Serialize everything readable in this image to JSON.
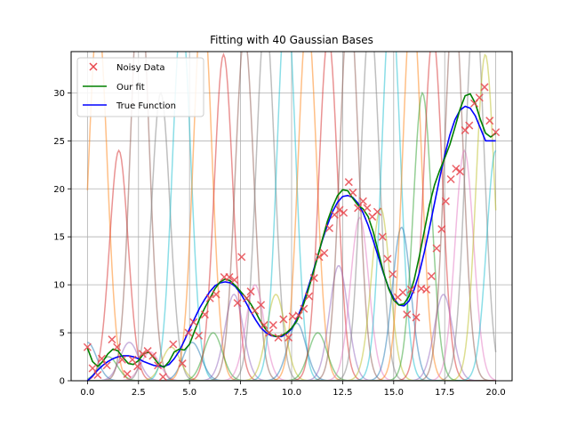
{
  "chart_data": {
    "type": "line",
    "title": "Fitting with 40 Gaussian Bases",
    "xlabel": "",
    "ylabel": "",
    "xlim": [
      -0.8,
      20.8
    ],
    "ylim": [
      0,
      34.3
    ],
    "xticks": [
      0.0,
      2.5,
      5.0,
      7.5,
      10.0,
      12.5,
      15.0,
      17.5,
      20.0
    ],
    "xtick_labels": [
      "0.0",
      "2.5",
      "5.0",
      "7.5",
      "10.0",
      "12.5",
      "15.0",
      "17.5",
      "20.0"
    ],
    "yticks": [
      0,
      5,
      10,
      15,
      20,
      25,
      30
    ],
    "ytick_labels": [
      "0",
      "5",
      "10",
      "15",
      "20",
      "25",
      "30"
    ],
    "grid": true,
    "legend_position": "top-left",
    "legend": [
      {
        "label": "Noisy Data",
        "marker": "x",
        "color": "#e8474d"
      },
      {
        "label": "Our fit",
        "marker": "line",
        "color": "#008000"
      },
      {
        "label": "True Function",
        "marker": "line",
        "color": "#0000ff"
      }
    ],
    "basis": {
      "count": 40,
      "centers_from": 0,
      "centers_to": 20,
      "width": 0.45,
      "amplitudes": [
        4.0,
        38.0,
        2.5,
        24.0,
        4.0,
        42.0,
        3.0,
        30.0,
        3.5,
        38.0,
        4.0,
        40.0,
        5.0,
        34.0,
        9.0,
        36.0,
        10.0,
        38.0,
        9.0,
        40.0,
        6.0,
        38.0,
        5.0,
        36.0,
        12.0,
        40.0,
        17.0,
        38.0,
        18.0,
        40.0,
        16.0,
        40.0,
        30.0,
        36.0,
        9.0,
        40.0,
        24.0,
        40.0,
        34.0,
        24.0
      ],
      "colors": [
        "#1f77b4",
        "#ff7f0e",
        "#2ca02c",
        "#d62728",
        "#9467bd",
        "#8c564b",
        "#e377c2",
        "#7f7f7f",
        "#bcbd22",
        "#17becf"
      ]
    },
    "series": [
      {
        "name": "True Function",
        "color": "#0000ff",
        "x": [
          0.0,
          0.25,
          0.5,
          0.75,
          1.0,
          1.25,
          1.5,
          1.75,
          2.0,
          2.25,
          2.5,
          2.75,
          3.0,
          3.25,
          3.5,
          3.75,
          4.0,
          4.25,
          4.5,
          4.75,
          5.0,
          5.25,
          5.5,
          5.75,
          6.0,
          6.25,
          6.5,
          6.75,
          7.0,
          7.25,
          7.5,
          7.75,
          8.0,
          8.25,
          8.5,
          8.75,
          9.0,
          9.25,
          9.5,
          9.75,
          10.0,
          10.25,
          10.5,
          10.75,
          11.0,
          11.25,
          11.5,
          11.75,
          12.0,
          12.25,
          12.5,
          12.75,
          13.0,
          13.25,
          13.5,
          13.75,
          14.0,
          14.25,
          14.5,
          14.75,
          15.0,
          15.25,
          15.5,
          15.75,
          16.0,
          16.25,
          16.5,
          16.75,
          17.0,
          17.25,
          17.5,
          17.75,
          18.0,
          18.25,
          18.5,
          18.75,
          19.0,
          19.25,
          19.5,
          19.75,
          20.0
        ],
        "y": [
          0.0,
          0.5,
          1.1,
          1.6,
          2.0,
          2.3,
          2.5,
          2.6,
          2.6,
          2.5,
          2.3,
          2.0,
          1.8,
          1.6,
          1.5,
          1.5,
          1.7,
          2.3,
          3.1,
          4.2,
          5.4,
          6.5,
          7.6,
          8.5,
          9.3,
          9.9,
          10.2,
          10.3,
          10.2,
          9.8,
          9.1,
          8.2,
          7.2,
          6.3,
          5.5,
          5.0,
          4.7,
          4.6,
          4.6,
          4.9,
          5.4,
          6.4,
          7.7,
          9.3,
          11.0,
          12.8,
          14.6,
          16.2,
          17.6,
          18.6,
          19.2,
          19.3,
          19.1,
          18.5,
          17.5,
          16.2,
          14.6,
          12.9,
          11.2,
          9.7,
          8.6,
          7.9,
          7.8,
          8.3,
          9.5,
          11.2,
          13.4,
          15.9,
          18.5,
          21.1,
          23.5,
          25.6,
          27.2,
          28.2,
          28.6,
          28.4,
          27.6,
          26.3,
          25.0,
          25.0,
          25.0
        ]
      },
      {
        "name": "Our fit",
        "color": "#008000",
        "x": [
          0.0,
          0.25,
          0.5,
          0.75,
          1.0,
          1.25,
          1.5,
          1.75,
          2.0,
          2.25,
          2.5,
          2.75,
          3.0,
          3.25,
          3.5,
          3.75,
          4.0,
          4.25,
          4.5,
          4.75,
          5.0,
          5.25,
          5.5,
          5.75,
          6.0,
          6.25,
          6.5,
          6.75,
          7.0,
          7.25,
          7.5,
          7.75,
          8.0,
          8.25,
          8.5,
          8.75,
          9.0,
          9.25,
          9.5,
          9.75,
          10.0,
          10.25,
          10.5,
          10.75,
          11.0,
          11.25,
          11.5,
          11.75,
          12.0,
          12.25,
          12.5,
          12.75,
          13.0,
          13.25,
          13.5,
          13.75,
          14.0,
          14.25,
          14.5,
          14.75,
          15.0,
          15.25,
          15.5,
          15.75,
          16.0,
          16.25,
          16.5,
          16.75,
          17.0,
          17.25,
          17.5,
          17.75,
          18.0,
          18.25,
          18.5,
          18.75,
          19.0,
          19.25,
          19.5,
          19.75,
          20.0
        ],
        "y": [
          3.4,
          2.0,
          1.5,
          2.0,
          2.8,
          3.3,
          3.1,
          2.4,
          1.8,
          1.7,
          2.1,
          2.8,
          3.0,
          2.4,
          1.7,
          1.4,
          2.0,
          3.0,
          3.3,
          3.2,
          3.8,
          5.2,
          6.5,
          7.6,
          8.6,
          9.6,
          10.3,
          10.6,
          10.4,
          9.9,
          9.3,
          8.7,
          8.0,
          7.1,
          6.1,
          5.3,
          4.8,
          4.6,
          4.7,
          5.0,
          5.5,
          6.2,
          7.4,
          9.0,
          10.8,
          12.7,
          14.7,
          16.6,
          18.1,
          19.3,
          19.9,
          19.8,
          19.0,
          18.3,
          17.9,
          17.1,
          15.5,
          13.4,
          11.3,
          9.6,
          8.4,
          7.9,
          8.0,
          8.8,
          10.5,
          12.9,
          15.6,
          18.3,
          20.4,
          21.9,
          23.2,
          24.6,
          26.4,
          28.3,
          29.7,
          29.9,
          28.9,
          27.2,
          25.8,
          25.4,
          25.8
        ]
      }
    ],
    "scatter": {
      "name": "Noisy Data",
      "color": "#e8474d",
      "points": [
        [
          0.0,
          3.5
        ],
        [
          0.25,
          1.3
        ],
        [
          0.5,
          0.6
        ],
        [
          0.7,
          2.3
        ],
        [
          0.95,
          1.6
        ],
        [
          1.2,
          4.3
        ],
        [
          1.45,
          3.5
        ],
        [
          1.7,
          2.2
        ],
        [
          1.95,
          0.7
        ],
        [
          2.2,
          2.2
        ],
        [
          2.45,
          1.5
        ],
        [
          2.7,
          2.8
        ],
        [
          2.95,
          3.1
        ],
        [
          3.2,
          2.6
        ],
        [
          3.45,
          1.6
        ],
        [
          3.7,
          0.4
        ],
        [
          4.2,
          3.8
        ],
        [
          4.65,
          1.8
        ],
        [
          4.95,
          5.0
        ],
        [
          5.2,
          6.1
        ],
        [
          5.45,
          4.7
        ],
        [
          5.75,
          6.9
        ],
        [
          6.0,
          8.6
        ],
        [
          6.3,
          9.0
        ],
        [
          6.7,
          10.8
        ],
        [
          6.95,
          10.8
        ],
        [
          7.2,
          10.5
        ],
        [
          7.35,
          8.1
        ],
        [
          7.55,
          12.9
        ],
        [
          7.8,
          8.6
        ],
        [
          8.0,
          9.3
        ],
        [
          8.2,
          7.3
        ],
        [
          8.5,
          7.9
        ],
        [
          8.65,
          5.8
        ],
        [
          8.9,
          5.0
        ],
        [
          9.1,
          5.8
        ],
        [
          9.35,
          4.5
        ],
        [
          9.6,
          6.4
        ],
        [
          9.85,
          4.5
        ],
        [
          10.05,
          6.7
        ],
        [
          10.35,
          6.8
        ],
        [
          10.6,
          7.5
        ],
        [
          10.85,
          8.8
        ],
        [
          11.1,
          10.7
        ],
        [
          11.35,
          12.9
        ],
        [
          11.6,
          13.3
        ],
        [
          11.85,
          15.9
        ],
        [
          12.1,
          17.3
        ],
        [
          12.35,
          17.8
        ],
        [
          12.55,
          17.5
        ],
        [
          12.8,
          20.7
        ],
        [
          13.0,
          19.6
        ],
        [
          13.25,
          18.0
        ],
        [
          13.5,
          18.7
        ],
        [
          13.7,
          18.0
        ],
        [
          13.95,
          17.1
        ],
        [
          14.2,
          17.6
        ],
        [
          14.45,
          15.0
        ],
        [
          14.7,
          12.7
        ],
        [
          14.95,
          11.1
        ],
        [
          15.2,
          8.7
        ],
        [
          15.45,
          9.2
        ],
        [
          15.65,
          6.9
        ],
        [
          15.85,
          9.5
        ],
        [
          16.1,
          6.6
        ],
        [
          16.35,
          9.6
        ],
        [
          16.6,
          9.5
        ],
        [
          16.85,
          10.9
        ],
        [
          17.1,
          13.8
        ],
        [
          17.35,
          15.8
        ],
        [
          17.55,
          18.7
        ],
        [
          17.8,
          21.0
        ],
        [
          18.05,
          22.1
        ],
        [
          18.25,
          21.8
        ],
        [
          18.5,
          26.1
        ],
        [
          18.7,
          26.6
        ],
        [
          18.95,
          28.9
        ],
        [
          19.2,
          29.5
        ],
        [
          19.45,
          30.6
        ],
        [
          19.7,
          27.1
        ],
        [
          20.0,
          25.9
        ]
      ]
    }
  }
}
